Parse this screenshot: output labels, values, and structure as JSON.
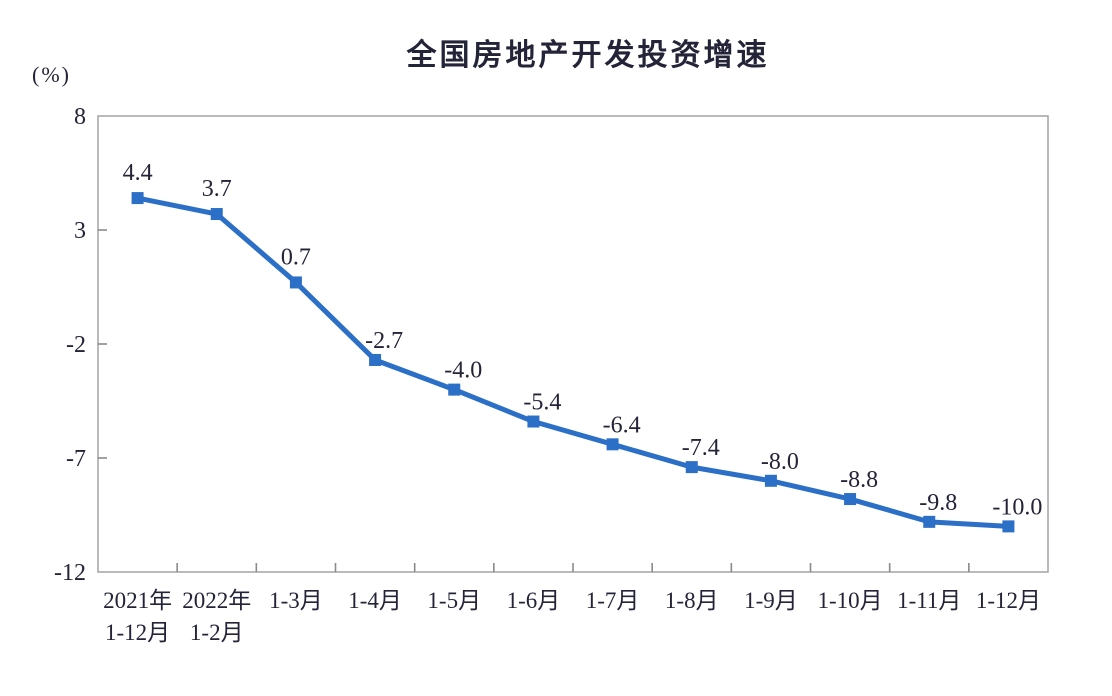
{
  "chart_data": {
    "type": "line",
    "title": "全国房地产开发投资增速",
    "unit_label": "(%)",
    "categories": [
      [
        "2021年",
        "1-12月"
      ],
      [
        "2022年",
        "1-2月"
      ],
      [
        "1-3月"
      ],
      [
        "1-4月"
      ],
      [
        "1-5月"
      ],
      [
        "1-6月"
      ],
      [
        "1-7月"
      ],
      [
        "1-8月"
      ],
      [
        "1-9月"
      ],
      [
        "1-10月"
      ],
      [
        "1-11月"
      ],
      [
        "1-12月"
      ]
    ],
    "values": [
      4.4,
      3.7,
      0.7,
      -2.7,
      -4.0,
      -5.4,
      -6.4,
      -7.4,
      -8.0,
      -8.8,
      -9.8,
      -10.0
    ],
    "value_labels": [
      "4.4",
      "3.7",
      "0.7",
      "-2.7",
      "-4.0",
      "-5.4",
      "-6.4",
      "-7.4",
      "-8.0",
      "-8.8",
      "-9.8",
      "-10.0"
    ],
    "y_ticks": [
      "8",
      "3",
      "-2",
      "-7",
      "-12"
    ],
    "y_tick_values": [
      8,
      3,
      -2,
      -7,
      -12
    ],
    "ylim": [
      -12,
      8
    ],
    "grid": "off",
    "legend": "none",
    "marker_shape": "square",
    "colors": {
      "line": "#2B6FC7",
      "marker": "#2B6FC7",
      "text": "#242438",
      "axis_border": "#A8A8AC",
      "tick": "#8A8A8E",
      "background": "#FFFFFF"
    }
  }
}
